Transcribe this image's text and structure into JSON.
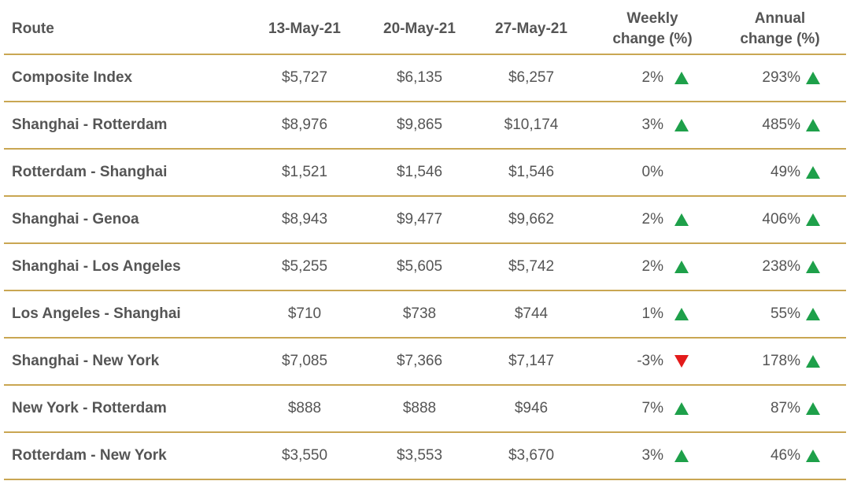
{
  "table": {
    "header": [
      "Route",
      "13-May-21",
      "20-May-21",
      "27-May-21",
      "Weekly change (%)",
      "Annual change (%)"
    ],
    "rows": [
      [
        "Composite Index",
        "$5,727",
        "$6,135",
        "$6,257",
        "2%",
        "293%"
      ],
      [
        "Shanghai - Rotterdam",
        "$8,976",
        "$9,865",
        "$10,174",
        "3%",
        "485%"
      ],
      [
        "Rotterdam - Shanghai",
        "$1,521",
        "$1,546",
        "$1,546",
        "0%",
        "49%"
      ],
      [
        "Shanghai - Genoa",
        "$8,943",
        "$9,477",
        "$9,662",
        "2%",
        "406%"
      ],
      [
        "Shanghai - Los Angeles",
        "$5,255",
        "$5,605",
        "$5,742",
        "2%",
        "238%"
      ],
      [
        "Los Angeles - Shanghai",
        "$710",
        "$738",
        "$744",
        "1%",
        "55%"
      ],
      [
        "Shanghai - New York",
        "$7,085",
        "$7,366",
        "$7,147",
        "-3%",
        "178%"
      ],
      [
        "New York - Rotterdam",
        "$888",
        "$888",
        "$946",
        "7%",
        "87%"
      ],
      [
        "Rotterdam - New York",
        "$3,550",
        "$3,553",
        "$3,670",
        "3%",
        "46%"
      ]
    ]
  }
}
